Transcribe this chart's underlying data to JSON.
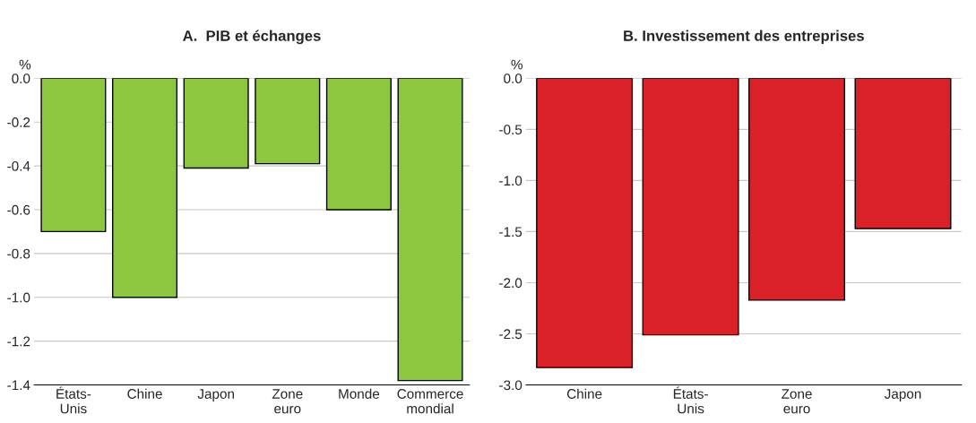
{
  "chart_data": [
    {
      "type": "bar",
      "title": "A.  PIB et échanges",
      "ylabel": "%",
      "categories": [
        "États-\nUnis",
        "Chine",
        "Japon",
        "Zone\neuro",
        "Monde",
        "Commerce\nmondial"
      ],
      "values": [
        -0.7,
        -1.0,
        -0.41,
        -0.39,
        -0.6,
        -1.38
      ],
      "color": "#8dc63f",
      "ylim": [
        -1.4,
        0.0
      ],
      "yticks": [
        {
          "value": 0,
          "label": "0.0"
        },
        -0.2,
        -0.4,
        -0.6,
        -0.8,
        {
          "value": -1,
          "label": "-1.0"
        },
        -1.2,
        -1.4
      ],
      "grid": "y"
    },
    {
      "type": "bar",
      "title": "B. Investissement des entreprises",
      "ylabel": "%",
      "categories": [
        "Chine",
        "États-\nUnis",
        "Zone\neuro",
        "Japon"
      ],
      "values": [
        -2.83,
        -2.51,
        -2.17,
        -1.47
      ],
      "color": "#da2128",
      "ylim": [
        -3.0,
        0.0
      ],
      "yticks": [
        {
          "value": 0,
          "label": "0.0"
        },
        -0.5,
        {
          "value": -1,
          "label": "-1.0"
        },
        -1.5,
        {
          "value": -2,
          "label": "-2.0"
        },
        -2.5,
        {
          "value": -3,
          "label": "-3.0"
        }
      ],
      "grid": "y"
    }
  ]
}
